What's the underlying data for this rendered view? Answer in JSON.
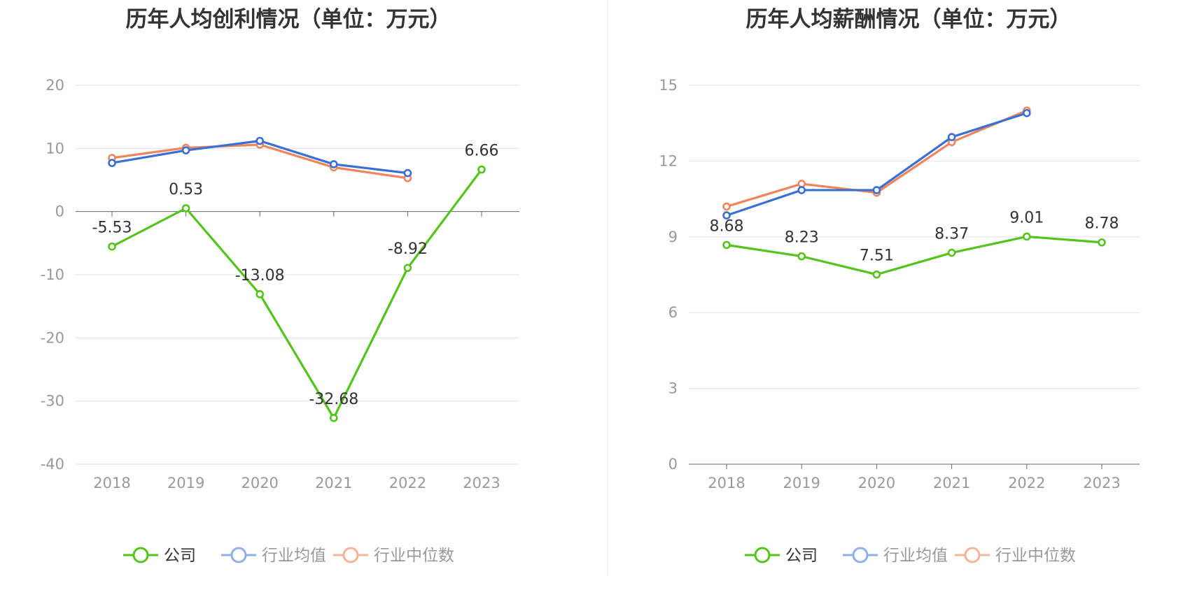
{
  "chart_data": [
    {
      "type": "line",
      "title": "历年人均创利情况（单位：万元）",
      "categories": [
        "2018",
        "2019",
        "2020",
        "2021",
        "2022",
        "2023"
      ],
      "ylim": [
        -40,
        20
      ],
      "yticks": [
        20,
        10,
        0,
        -10,
        -20,
        -30,
        -40
      ],
      "grid": true,
      "legend": "bottom",
      "series": [
        {
          "name": "公司",
          "color": "#52c41a",
          "values": [
            -5.53,
            0.53,
            -13.08,
            -32.68,
            -8.92,
            6.66
          ],
          "labels": [
            "-5.53",
            "0.53",
            "-13.08",
            "-32.68",
            "-8.92",
            "6.66"
          ]
        },
        {
          "name": "行业均值",
          "color": "#3a6fd8",
          "values": [
            7.7,
            9.7,
            11.2,
            7.5,
            6.1,
            null
          ]
        },
        {
          "name": "行业中位数",
          "color": "#f0845a",
          "values": [
            8.5,
            10.1,
            10.6,
            7.0,
            5.3,
            null
          ]
        }
      ]
    },
    {
      "type": "line",
      "title": "历年人均薪酬情况（单位：万元）",
      "categories": [
        "2018",
        "2019",
        "2020",
        "2021",
        "2022",
        "2023"
      ],
      "ylim": [
        0,
        15
      ],
      "yticks": [
        15,
        12,
        9,
        6,
        3,
        0
      ],
      "grid": true,
      "legend": "bottom",
      "series": [
        {
          "name": "公司",
          "color": "#52c41a",
          "values": [
            8.68,
            8.23,
            7.51,
            8.37,
            9.01,
            8.78
          ],
          "labels": [
            "8.68",
            "8.23",
            "7.51",
            "8.37",
            "9.01",
            "8.78"
          ]
        },
        {
          "name": "行业均值",
          "color": "#3a6fd8",
          "values": [
            9.85,
            10.85,
            10.85,
            12.95,
            13.9,
            null
          ]
        },
        {
          "name": "行业中位数",
          "color": "#f0845a",
          "values": [
            10.2,
            11.1,
            10.75,
            12.75,
            14.0,
            null
          ]
        }
      ]
    }
  ]
}
